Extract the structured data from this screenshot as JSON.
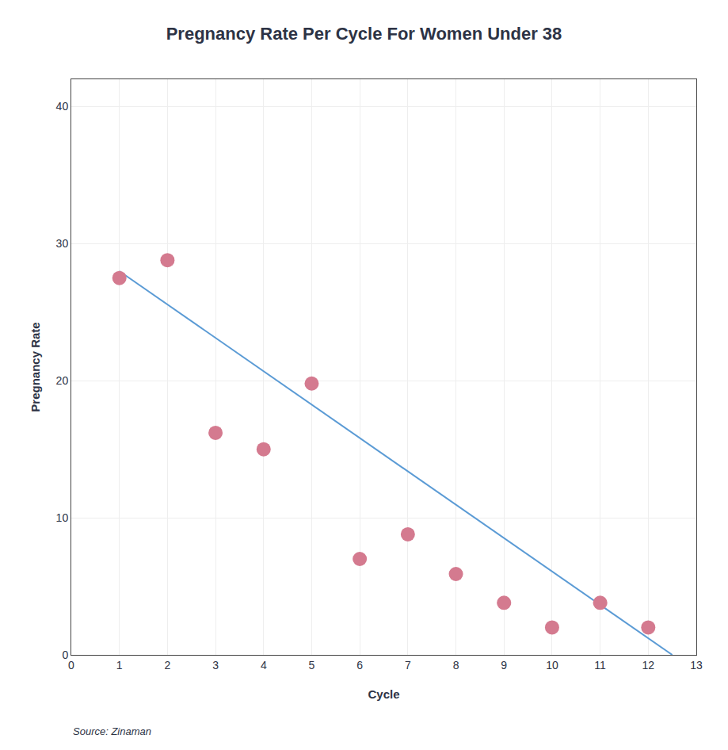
{
  "chart_data": {
    "type": "scatter",
    "title": "Pregnancy Rate Per Cycle For Women Under 38",
    "xlabel": "Cycle",
    "ylabel": "Pregnancy Rate",
    "annotation": "Source: Zinaman",
    "series": [
      {
        "type": "scatter",
        "color": "#d47a8f",
        "x": [
          1,
          2,
          3,
          4,
          5,
          6,
          7,
          8,
          9,
          10,
          11,
          12
        ],
        "values": [
          27.5,
          28.8,
          16.2,
          15.0,
          19.8,
          7.0,
          8.8,
          5.9,
          3.8,
          2.0,
          3.8,
          2.0
        ]
      },
      {
        "type": "line",
        "color": "#5b9bd5",
        "x": [
          1.0,
          12.5
        ],
        "values": [
          28.0,
          0.0
        ]
      }
    ],
    "xlim": [
      0,
      13
    ],
    "ylim": [
      0,
      42
    ],
    "xticks": [
      0,
      1,
      2,
      3,
      4,
      5,
      6,
      7,
      8,
      9,
      10,
      11,
      12,
      13
    ],
    "yticks": [
      0,
      10,
      20,
      30,
      40
    ],
    "grid": true
  }
}
